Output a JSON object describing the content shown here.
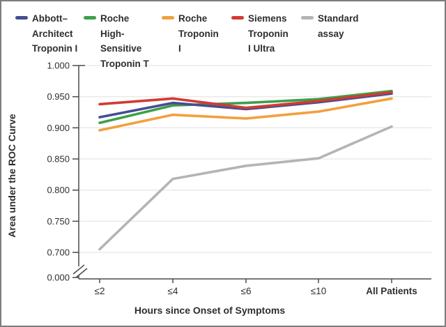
{
  "figure": {
    "border_color": "#7d7d7d",
    "background_color": "#ffffff",
    "text_color": "#2e2e2e",
    "axis_color": "#4a4a4a",
    "gridline_color": "#e8e8e8"
  },
  "chart_data": {
    "type": "line",
    "title": "",
    "xlabel": "Hours since Onset of Symptoms",
    "ylabel": "Area under the ROC Curve",
    "categories": [
      "≤2",
      "≤4",
      "≤6",
      "≤10",
      "All Patients"
    ],
    "ylim": [
      0.7,
      1.0
    ],
    "axis_break_to_zero": true,
    "grid": true,
    "legend_position": "top",
    "y_ticks": [
      {
        "label": "1.000",
        "value": 1.0
      },
      {
        "label": "0.950",
        "value": 0.95
      },
      {
        "label": "0.900",
        "value": 0.9
      },
      {
        "label": "0.850",
        "value": 0.85
      },
      {
        "label": "0.800",
        "value": 0.8
      },
      {
        "label": "0.750",
        "value": 0.75
      },
      {
        "label": "0.700",
        "value": 0.7
      },
      {
        "label": "0.000",
        "value": 0.0
      }
    ],
    "series": [
      {
        "name": "Abbott–Architect Troponin I",
        "color": "#454d92",
        "values": [
          0.917,
          0.94,
          0.93,
          0.941,
          0.955
        ]
      },
      {
        "name": "Roche High-Sensitive Troponin T",
        "color": "#3d9f4b",
        "values": [
          0.908,
          0.936,
          0.94,
          0.946,
          0.959
        ]
      },
      {
        "name": "Roche Troponin I",
        "color": "#f2a03e",
        "values": [
          0.896,
          0.921,
          0.915,
          0.926,
          0.947
        ]
      },
      {
        "name": "Siemens Troponin I Ultra",
        "color": "#d13b31",
        "values": [
          0.938,
          0.947,
          0.932,
          0.943,
          0.957
        ]
      },
      {
        "name": "Standard assay",
        "color": "#b4b4b4",
        "values": [
          0.705,
          0.818,
          0.839,
          0.851,
          0.902
        ]
      }
    ]
  }
}
